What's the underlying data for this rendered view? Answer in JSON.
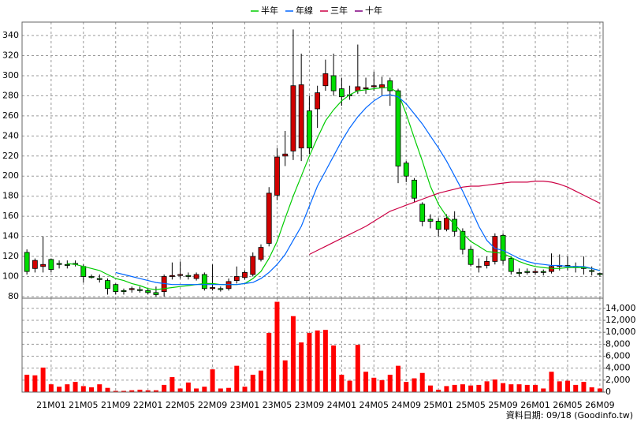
{
  "chart_data": {
    "type": "candlestick",
    "legend_position": "top",
    "up_color": "#d00000",
    "down_color": "#00dd00",
    "categories": [
      null,
      null,
      null,
      "21M01",
      null,
      null,
      null,
      "21M05",
      null,
      null,
      null,
      "21M09",
      null,
      null,
      null,
      "22M01",
      null,
      null,
      null,
      "22M05",
      null,
      null,
      null,
      "22M09",
      null,
      null,
      null,
      "23M01",
      null,
      null,
      null,
      "23M05",
      null,
      null,
      null,
      "23M09",
      null,
      null,
      null,
      "24M01",
      null,
      null,
      null,
      "24M05",
      null,
      null,
      null,
      "24M09",
      null,
      null,
      null,
      "25M01",
      null,
      null,
      null,
      "25M05",
      null,
      null,
      null,
      "25M09",
      null,
      null,
      null,
      "26M01",
      null,
      null,
      null,
      "26M05",
      null,
      null,
      null,
      "26M09"
    ],
    "open": [
      124,
      108,
      110,
      117,
      113,
      112,
      113,
      110,
      100,
      98,
      96,
      92,
      86,
      87,
      87,
      86,
      84,
      85,
      100,
      101,
      101,
      98,
      102,
      88,
      88,
      88,
      96,
      99,
      102,
      117,
      133,
      181,
      220,
      225,
      228,
      265,
      267,
      290,
      300,
      287,
      281,
      285,
      287,
      289,
      288,
      295,
      285,
      213,
      196,
      172,
      157,
      155,
      147,
      157,
      145,
      127,
      110,
      111,
      115,
      141,
      118,
      104,
      105,
      104,
      105,
      105,
      110,
      111,
      110,
      109,
      106,
      103
    ],
    "high": [
      127,
      118,
      140,
      118,
      116,
      116,
      116,
      112,
      102,
      102,
      98,
      93,
      88,
      90,
      90,
      88,
      90,
      102,
      114,
      115,
      104,
      104,
      104,
      112,
      90,
      98,
      110,
      106,
      124,
      132,
      189,
      228,
      245,
      346,
      322,
      280,
      290,
      316,
      322,
      298,
      290,
      331,
      298,
      304,
      299,
      298,
      287,
      215,
      198,
      174,
      162,
      158,
      162,
      165,
      148,
      130,
      118,
      120,
      143,
      143,
      120,
      108,
      108,
      108,
      107,
      123,
      122,
      120,
      114,
      120,
      110,
      104
    ],
    "low": [
      102,
      104,
      104,
      104,
      108,
      108,
      110,
      94,
      98,
      94,
      82,
      82,
      82,
      84,
      84,
      82,
      80,
      80,
      97,
      98,
      97,
      96,
      86,
      86,
      85,
      86,
      93,
      97,
      100,
      115,
      130,
      176,
      210,
      216,
      215,
      222,
      248,
      285,
      280,
      270,
      276,
      282,
      282,
      285,
      280,
      270,
      193,
      194,
      174,
      150,
      148,
      140,
      145,
      140,
      122,
      110,
      104,
      108,
      112,
      112,
      102,
      100,
      102,
      102,
      101,
      103,
      106,
      106,
      104,
      102,
      101,
      100
    ],
    "close": [
      105,
      116,
      112,
      107,
      112,
      111,
      112,
      100,
      99,
      97,
      88,
      85,
      85,
      88,
      86,
      84,
      82,
      100,
      101,
      102,
      100,
      102,
      88,
      89,
      87,
      95,
      100,
      104,
      120,
      129,
      183,
      219,
      222,
      290,
      291,
      228,
      283,
      302,
      285,
      279,
      280,
      289,
      288,
      290,
      291,
      285,
      210,
      200,
      178,
      155,
      155,
      147,
      158,
      145,
      127,
      112,
      110,
      115,
      140,
      116,
      105,
      103,
      104,
      105,
      104,
      110,
      111,
      110,
      109,
      108,
      105,
      102
    ],
    "ylim": [
      78.4,
      353.4
    ],
    "yticks": [
      80,
      100,
      120,
      140,
      160,
      180,
      200,
      220,
      240,
      260,
      280,
      300,
      320,
      340
    ],
    "grid": true,
    "series": [
      {
        "name": "半年",
        "color": "#00cc00",
        "values": [
          null,
          null,
          null,
          null,
          null,
          113,
          112,
          110,
          108,
          106,
          102,
          98,
          96,
          93,
          91,
          88,
          87,
          88,
          89,
          90,
          91,
          92,
          93,
          93,
          92,
          92,
          92,
          93,
          98,
          105,
          118,
          135,
          158,
          180,
          200,
          220,
          238,
          255,
          266,
          275,
          281,
          285,
          286,
          287,
          288,
          288,
          283,
          262,
          238,
          215,
          190,
          172,
          160,
          152,
          143,
          135,
          130,
          125,
          124,
          123,
          119,
          115,
          112,
          110,
          109,
          108,
          108,
          109,
          109,
          109,
          108,
          106
        ]
      },
      {
        "name": "年線",
        "color": "#0066ff",
        "values": [
          null,
          null,
          null,
          null,
          null,
          null,
          null,
          null,
          null,
          null,
          null,
          104,
          102,
          100,
          98,
          96,
          94,
          93,
          92,
          92,
          92,
          92,
          92,
          92,
          92,
          92,
          92,
          93,
          94,
          98,
          104,
          112,
          122,
          136,
          150,
          170,
          190,
          205,
          220,
          235,
          248,
          259,
          268,
          275,
          280,
          281,
          279,
          272,
          262,
          252,
          240,
          228,
          215,
          200,
          185,
          168,
          150,
          136,
          128,
          126,
          122,
          118,
          115,
          113,
          112,
          111,
          111,
          110,
          110,
          110,
          108,
          106
        ]
      },
      {
        "name": "三年",
        "color": "#cc0044",
        "values": [
          null,
          null,
          null,
          null,
          null,
          null,
          null,
          null,
          null,
          null,
          null,
          null,
          null,
          null,
          null,
          null,
          null,
          null,
          null,
          null,
          null,
          null,
          null,
          null,
          null,
          null,
          null,
          null,
          null,
          null,
          null,
          null,
          null,
          null,
          null,
          122,
          126,
          130,
          134,
          138,
          142,
          146,
          150,
          155,
          160,
          165,
          168,
          171,
          174,
          177,
          180,
          183,
          185,
          187,
          189,
          190,
          190,
          191,
          192,
          193,
          194,
          194,
          194,
          195,
          195,
          194,
          192,
          189,
          185,
          181,
          177,
          173
        ]
      },
      {
        "name": "十年",
        "color": "#800080",
        "values": [
          null,
          null,
          null,
          null,
          null,
          null,
          null,
          null,
          null,
          null,
          null,
          null,
          null,
          null,
          null,
          null,
          null,
          null,
          null,
          null,
          null,
          null,
          null,
          null,
          null,
          null,
          null,
          null,
          null,
          null,
          null,
          null,
          null,
          null,
          null,
          null,
          null,
          null,
          null,
          null,
          null,
          null,
          null,
          null,
          null,
          null,
          null,
          null,
          null,
          null,
          null,
          null,
          null,
          null,
          null,
          null,
          null,
          null,
          null,
          null,
          null,
          null,
          null,
          null,
          null,
          null,
          null,
          null,
          null,
          null,
          null,
          null
        ]
      }
    ],
    "volume": {
      "color": "#ff0000",
      "values": [
        2900,
        2800,
        4100,
        1300,
        900,
        1300,
        1700,
        1000,
        800,
        1300,
        700,
        200,
        200,
        300,
        400,
        300,
        300,
        1200,
        2500,
        600,
        1600,
        600,
        900,
        3800,
        600,
        700,
        4400,
        900,
        2900,
        3600,
        9900,
        15100,
        5300,
        12700,
        8300,
        9900,
        10300,
        10400,
        7800,
        2900,
        1900,
        7900,
        3400,
        2400,
        2000,
        2900,
        4400,
        1700,
        2300,
        3200,
        1100,
        400,
        1000,
        1200,
        1300,
        1100,
        1200,
        1800,
        2100,
        1500,
        1300,
        1300,
        1200,
        1200,
        600,
        3400,
        1800,
        1900,
        1200,
        1700,
        800,
        600
      ],
      "ylim": [
        0,
        15700
      ],
      "yticks": [
        0,
        {
          "value": 2000,
          "label": "2,000"
        },
        {
          "value": 4000,
          "label": "4,000"
        },
        {
          "value": 6000,
          "label": "6,000"
        },
        {
          "value": 8000,
          "label": "8,000"
        },
        {
          "value": 10000,
          "label": "10,000"
        },
        {
          "value": 12000,
          "label": "12,000"
        },
        {
          "value": 14000,
          "label": "14,000"
        }
      ]
    },
    "footer": "資料日期: 09/18 (Goodinfo.tw)"
  }
}
